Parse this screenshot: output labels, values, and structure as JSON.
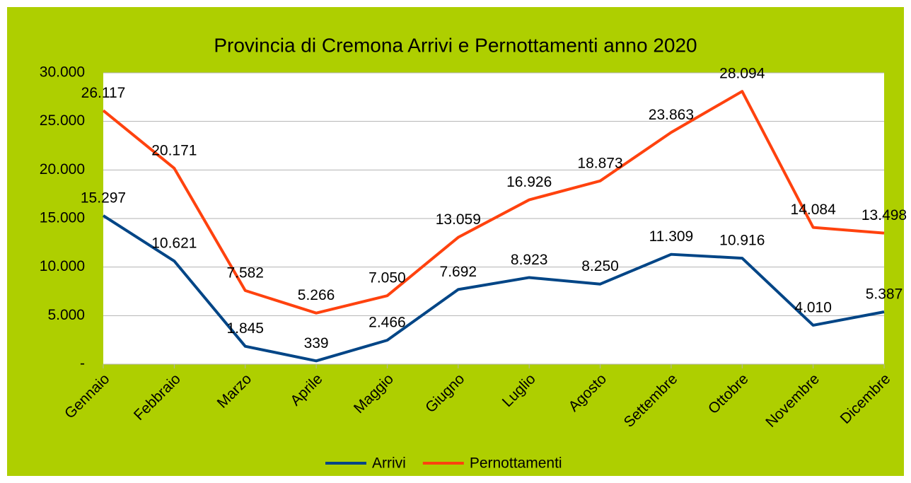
{
  "chart_data": {
    "type": "line",
    "title": "Provincia di Cremona Arrivi e Pernottamenti anno 2020",
    "categories": [
      "Gennaio",
      "Febbraio",
      "Marzo",
      "Aprile",
      "Maggio",
      "Giugno",
      "Luglio",
      "Agosto",
      "Settembre",
      "Ottobre",
      "Novembre",
      "Dicembre"
    ],
    "series": [
      {
        "name": "Arrivi",
        "color": "#004586",
        "values": [
          15297,
          10621,
          1845,
          339,
          2466,
          7692,
          8923,
          8250,
          11309,
          10916,
          4010,
          5387
        ],
        "value_labels": [
          "15.297",
          "10.621",
          "1.845",
          "339",
          "2.466",
          "7.692",
          "8.923",
          "8.250",
          "11.309",
          "10.916",
          "4.010",
          "5.387"
        ]
      },
      {
        "name": "Pernottamenti",
        "color": "#ff420e",
        "values": [
          26117,
          20171,
          7582,
          5266,
          7050,
          13059,
          16926,
          18873,
          23863,
          28094,
          14084,
          13498
        ],
        "value_labels": [
          "26.117",
          "20.171",
          "7.582",
          "5.266",
          "7.050",
          "13.059",
          "16.926",
          "18.873",
          "23.863",
          "28.094",
          "14.084",
          "13.498"
        ]
      }
    ],
    "ylim": [
      0,
      30000
    ],
    "yticks": [
      {
        "value": 0,
        "label": "-"
      },
      {
        "value": 5000,
        "label": "5.000"
      },
      {
        "value": 10000,
        "label": "10.000"
      },
      {
        "value": 15000,
        "label": "15.000"
      },
      {
        "value": 20000,
        "label": "20.000"
      },
      {
        "value": 25000,
        "label": "25.000"
      },
      {
        "value": 30000,
        "label": "30.000"
      }
    ],
    "grid": true,
    "legend": "bottom",
    "background": "#aecf00"
  }
}
